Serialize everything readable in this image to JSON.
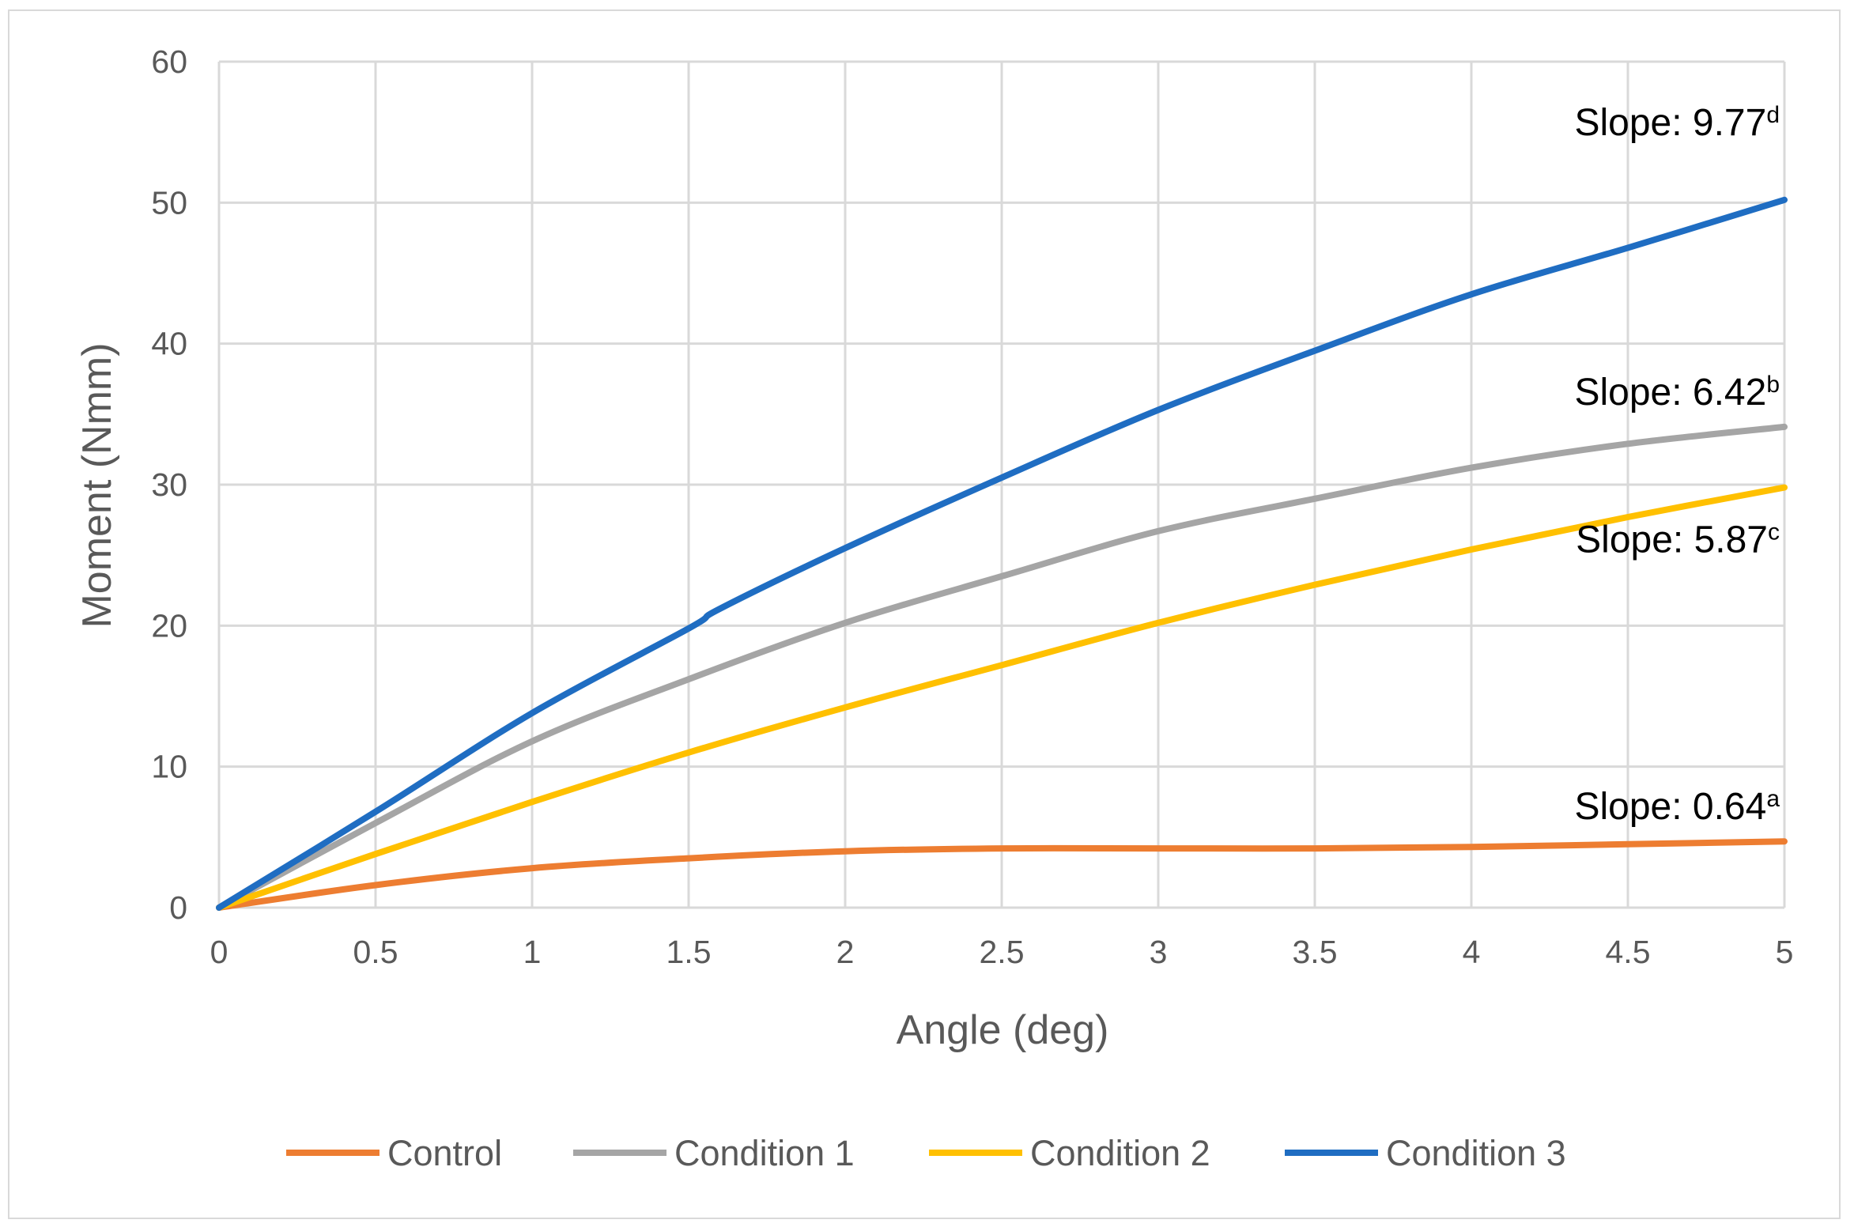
{
  "chart_data": {
    "type": "line",
    "title": "",
    "xlabel": "Angle (deg)",
    "ylabel": "Moment (Nmm)",
    "xlim": [
      0,
      5
    ],
    "ylim": [
      0,
      60
    ],
    "xticks": [
      "0",
      "0.5",
      "1",
      "1.5",
      "2",
      "2.5",
      "3",
      "3.5",
      "4",
      "4.5",
      "5"
    ],
    "yticks": [
      "0",
      "10",
      "20",
      "30",
      "40",
      "50",
      "60"
    ],
    "grid": true,
    "legend_position": "bottom",
    "series": [
      {
        "name": "Control",
        "color": "#ED7D31",
        "x": [
          0,
          0.5,
          1,
          1.5,
          2,
          2.5,
          3,
          3.5,
          4,
          4.5,
          5
        ],
        "y": [
          0,
          1.6,
          2.8,
          3.5,
          4.0,
          4.2,
          4.2,
          4.2,
          4.3,
          4.5,
          4.7
        ],
        "annotation": {
          "text": "Slope: 0.64",
          "sup": "a"
        }
      },
      {
        "name": "Condition 1",
        "color": "#A5A5A5",
        "x": [
          0,
          0.5,
          1,
          1.5,
          2,
          2.5,
          3,
          3.5,
          4,
          4.5,
          5
        ],
        "y": [
          0,
          6.0,
          11.8,
          16.2,
          20.2,
          23.5,
          26.7,
          29.0,
          31.2,
          32.9,
          34.1
        ],
        "annotation": {
          "text": "Slope: 6.42",
          "sup": "b"
        }
      },
      {
        "name": "Condition 2",
        "color": "#FFC000",
        "x": [
          0,
          0.5,
          1,
          1.5,
          2,
          2.5,
          3,
          3.5,
          4,
          4.5,
          5
        ],
        "y": [
          0,
          3.8,
          7.5,
          11.0,
          14.2,
          17.2,
          20.2,
          22.9,
          25.4,
          27.7,
          29.8
        ],
        "annotation": {
          "text": "Slope: 5.87",
          "sup": "c"
        }
      },
      {
        "name": "Condition 3",
        "color": "#1F6DC2",
        "x": [
          0,
          0.5,
          1,
          1.5,
          1.6,
          2,
          2.5,
          3,
          3.5,
          4,
          4.5,
          5
        ],
        "y": [
          0,
          6.8,
          13.8,
          19.8,
          21.2,
          25.5,
          30.5,
          35.3,
          39.5,
          43.5,
          46.8,
          50.2
        ],
        "annotation": {
          "text": "Slope: 9.77",
          "sup": "d"
        }
      }
    ]
  }
}
